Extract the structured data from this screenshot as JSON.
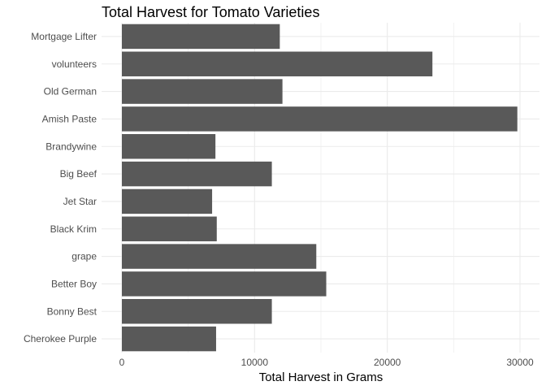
{
  "chart_data": {
    "type": "bar",
    "orientation": "horizontal",
    "title": "Total Harvest for Tomato Varieties",
    "xlabel": "Total Harvest in Grams",
    "ylabel": "",
    "categories": [
      "Mortgage Lifter",
      "volunteers",
      "Old German",
      "Amish Paste",
      "Brandywine",
      "Big Beef",
      "Jet Star",
      "Black Krim",
      "grape",
      "Better Boy",
      "Bonny Best",
      "Cherokee Purple"
    ],
    "values": [
      11900,
      23400,
      12100,
      29800,
      7050,
      11300,
      6800,
      7150,
      14650,
      15400,
      11300,
      7100
    ],
    "xlim": [
      0,
      31000
    ],
    "x_ticks": [
      0,
      10000,
      20000,
      30000
    ],
    "x_tick_labels": [
      "0",
      "10000",
      "20000",
      "30000"
    ],
    "grid": true,
    "bar_color": "#595959",
    "grid_color": "#ebebeb",
    "legend": "none"
  }
}
